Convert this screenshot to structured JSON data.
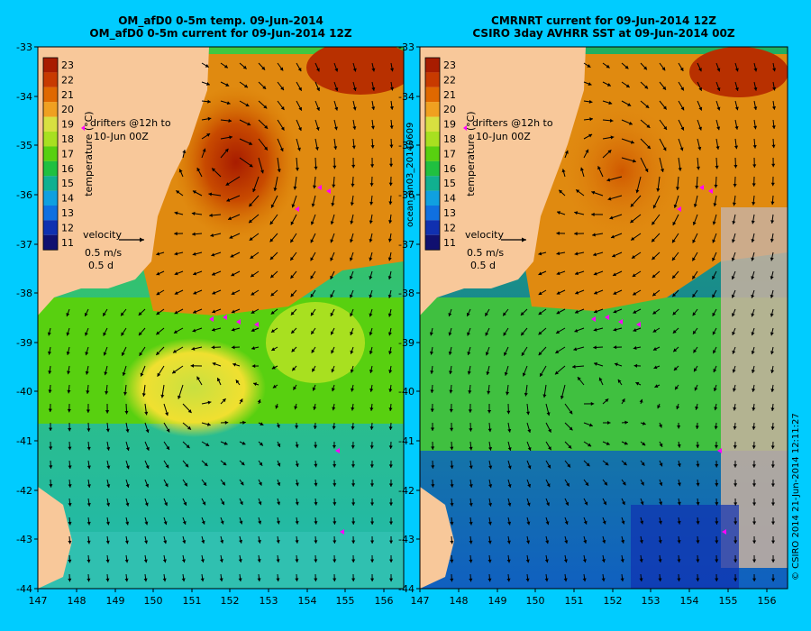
{
  "panels": [
    {
      "id": "left",
      "title_line1": "OM_afD0 0-5m temp. 09-Jun-2014",
      "title_line2": "OM_afD0 0-5m current for 09-Jun-2014 12Z",
      "colorbar_label": "temperature (°C)",
      "drifters_line1": "drifters @12h to",
      "drifters_line2": "10-Jun 00Z",
      "velocity_label": "velocity",
      "velocity_scale": "0.5 m/s",
      "velocity_time": "0.5 d"
    },
    {
      "id": "right",
      "title_line1": "CMRNRT current for 09-Jun-2014 12Z",
      "title_line2": "CSIRO 3day AVHRR SST at 09-Jun-2014 00Z",
      "colorbar_label": "temperature (°C)",
      "drifters_line1": "drifters @12h to",
      "drifters_line2": "10-Jun 00Z",
      "velocity_label": "velocity",
      "velocity_scale": "0.5 m/s",
      "velocity_time": "0.5 d"
    }
  ],
  "side_text_left": "ocean_an03_20140609",
  "side_text_right": "© CSIRO 2014   21-Jun-2014 12:11:27",
  "axes": {
    "lon_ticks": [
      147,
      148,
      149,
      150,
      151,
      152,
      153,
      154,
      155,
      156
    ],
    "lat_ticks": [
      -33,
      -34,
      -35,
      -36,
      -37,
      -38,
      -39,
      -40,
      -41,
      -42,
      -43,
      -44
    ],
    "lon_range": [
      147,
      156.5
    ],
    "lat_range": [
      -44,
      -33
    ]
  },
  "colorbar": {
    "values": [
      23,
      22,
      21,
      20,
      19,
      18,
      17,
      16,
      15,
      14,
      13,
      12,
      11
    ],
    "colors": [
      "#a81c00",
      "#c83a00",
      "#e06800",
      "#f0a020",
      "#d8e040",
      "#a8e020",
      "#58d010",
      "#20c040",
      "#10b090",
      "#10a0e0",
      "#1070e0",
      "#1030b0",
      "#101070"
    ]
  },
  "colors": {
    "land": "#f8c89a",
    "background": "#00ccff",
    "drifter": "#ff00ff",
    "no_data": "#c8b0a0"
  }
}
